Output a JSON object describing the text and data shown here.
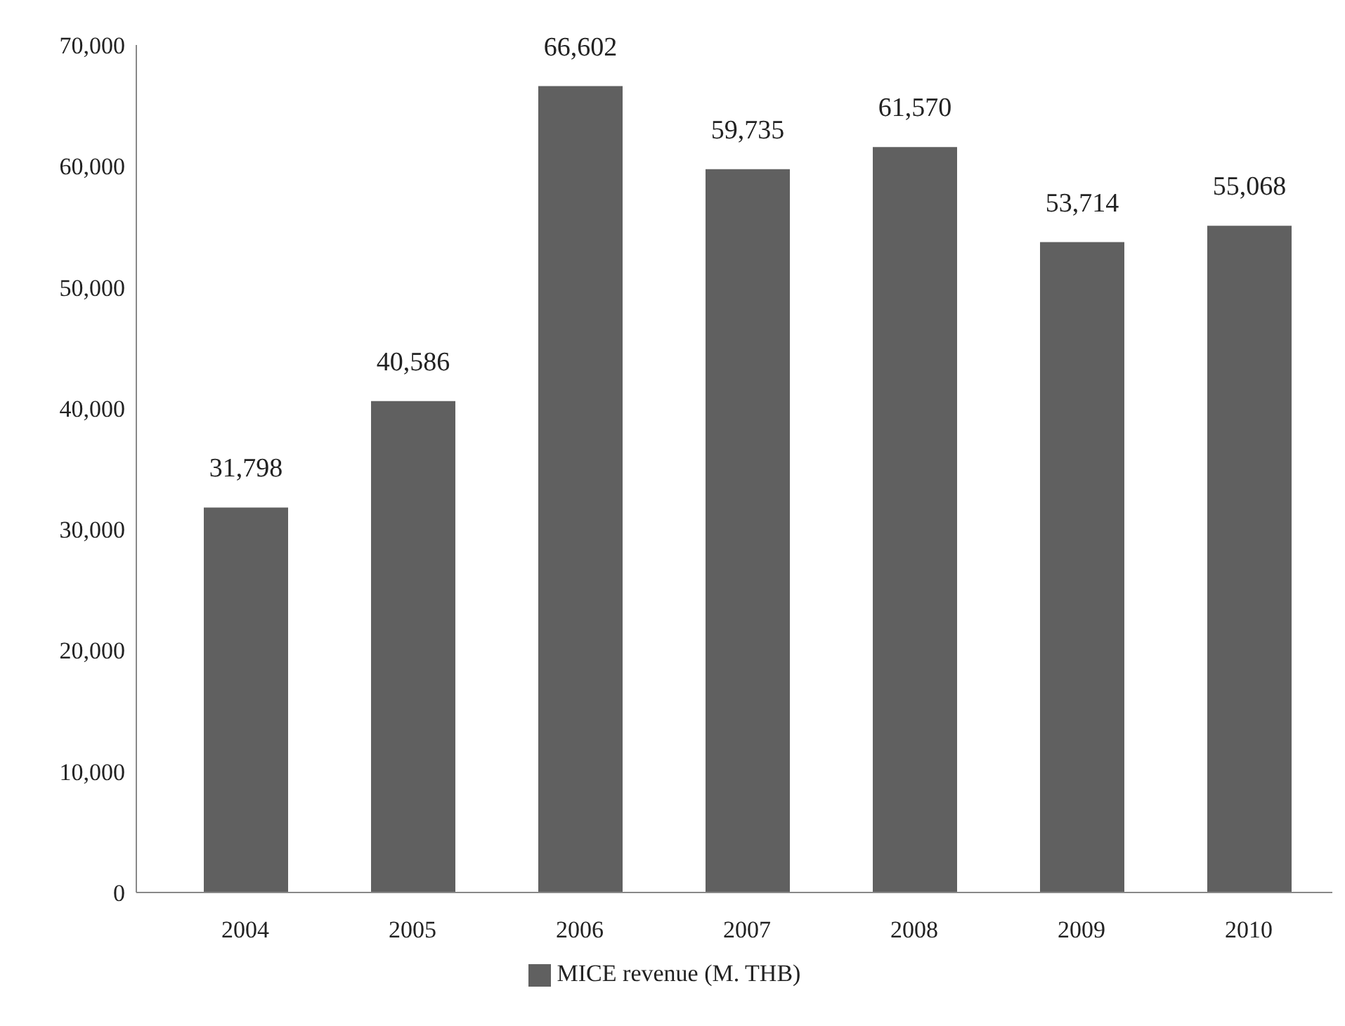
{
  "chart_data": {
    "type": "bar",
    "categories": [
      "2004",
      "2005",
      "2006",
      "2007",
      "2008",
      "2009",
      "2010"
    ],
    "series": [
      {
        "name": "MICE revenue (M. THB)",
        "color": "#606060",
        "values": [
          31798,
          40586,
          66602,
          59735,
          61570,
          53714,
          55068
        ],
        "value_labels": [
          "31,798",
          "40,586",
          "66,602",
          "59,735",
          "61,570",
          "53,714",
          "55,068"
        ]
      }
    ],
    "ylim": [
      0,
      70000
    ],
    "yticks": [
      0,
      {
        "value": 10000,
        "label": "10,000"
      },
      {
        "value": 20000,
        "label": "20,000"
      },
      {
        "value": 30000,
        "label": "30,000"
      },
      {
        "value": 40000,
        "label": "40,000"
      },
      {
        "value": 50000,
        "label": "50,000"
      },
      {
        "value": 60000,
        "label": "60,000"
      },
      {
        "value": 70000,
        "label": "70,000"
      }
    ],
    "grid": false,
    "legend": "bottom"
  }
}
